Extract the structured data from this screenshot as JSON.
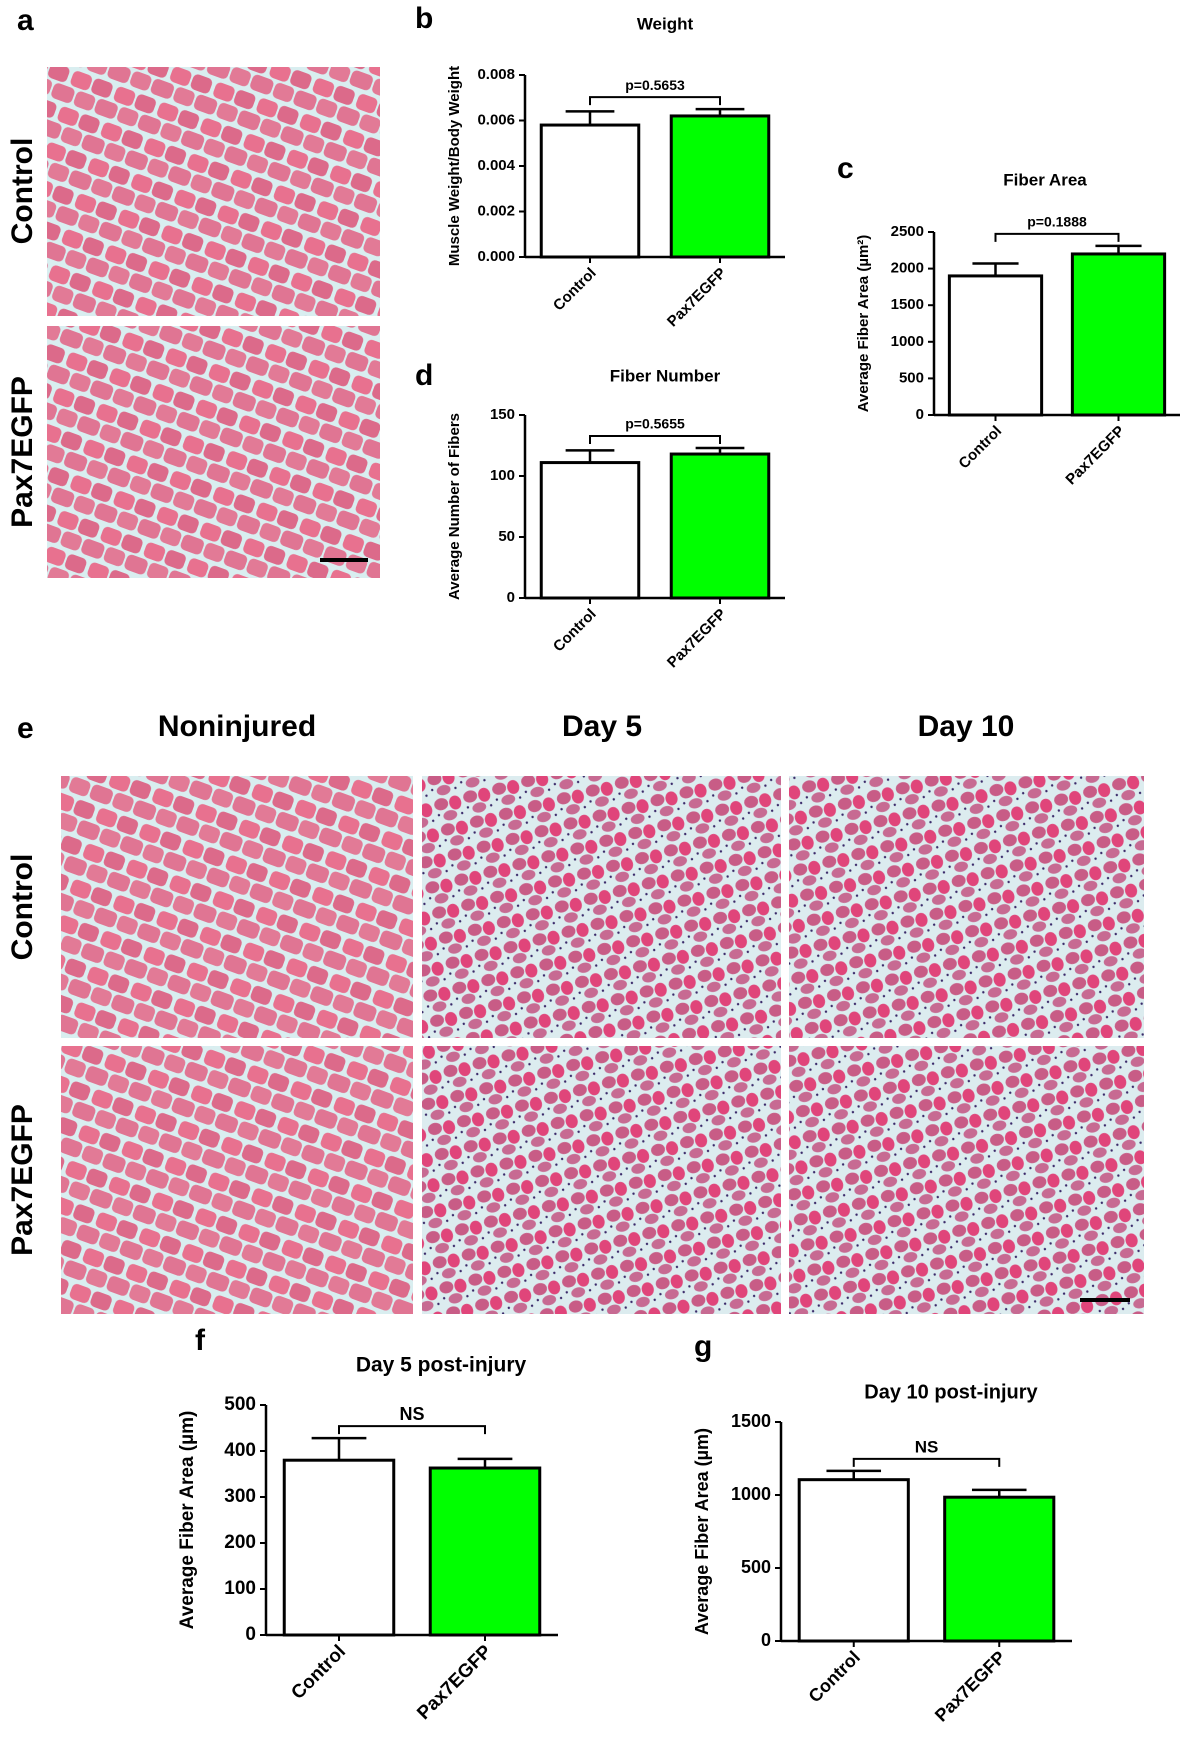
{
  "figure": {
    "panel_labels": [
      "a",
      "b",
      "c",
      "d",
      "e",
      "f",
      "g"
    ],
    "row_labels": [
      "Control",
      "Pax7EGFP"
    ],
    "column_labels": [
      "Noninjured",
      "Day 5",
      "Day 10"
    ]
  },
  "chart_data": [
    {
      "type": "bar",
      "title": "Weight",
      "y_label": "Muscle Weight/Body Weight",
      "categories": [
        "Control",
        "Pax7EGFP"
      ],
      "values": [
        0.0058,
        0.0062
      ],
      "errors": [
        0.0006,
        0.0003
      ],
      "colors": [
        "#ffffff",
        "#00ff00"
      ],
      "ylim": [
        0,
        0.008
      ],
      "yticks": [
        {
          "value": 0,
          "label": "0.000"
        },
        {
          "value": 0.002,
          "label": "0.002"
        },
        {
          "value": 0.004,
          "label": "0.004"
        },
        {
          "value": 0.006,
          "label": "0.006"
        },
        {
          "value": 0.008,
          "label": "0.008"
        }
      ],
      "annotation": "p=0.5653"
    },
    {
      "type": "bar",
      "title": "Fiber Area",
      "y_label": "Average Fiber Area (µm²)",
      "categories": [
        "Control",
        "Pax7EGFP"
      ],
      "values": [
        1900,
        2200
      ],
      "errors": [
        170,
        110
      ],
      "colors": [
        "#ffffff",
        "#00ff00"
      ],
      "ylim": [
        0,
        2500
      ],
      "yticks": [
        0,
        500,
        1000,
        1500,
        2000,
        2500
      ],
      "annotation": "p=0.1888"
    },
    {
      "type": "bar",
      "title": "Fiber Number",
      "y_label": "Average Number of Fibers",
      "categories": [
        "Control",
        "Pax7EGFP"
      ],
      "values": [
        111,
        118
      ],
      "errors": [
        10,
        5
      ],
      "colors": [
        "#ffffff",
        "#00ff00"
      ],
      "ylim": [
        0,
        150
      ],
      "yticks": [
        0,
        50,
        100,
        150
      ],
      "annotation": "p=0.5655"
    },
    {
      "type": "bar",
      "title": "Day 5 post-injury",
      "y_label": "Average Fiber Area (µm)",
      "categories": [
        "Control",
        "Pax7EGFP"
      ],
      "values": [
        380,
        363
      ],
      "errors": [
        48,
        20
      ],
      "colors": [
        "#ffffff",
        "#00ff00"
      ],
      "ylim": [
        0,
        500
      ],
      "yticks": [
        0,
        100,
        200,
        300,
        400,
        500
      ],
      "annotation": "NS"
    },
    {
      "type": "bar",
      "title": "Day 10 post-injury",
      "y_label": "Average Fiber Area (µm)",
      "categories": [
        "Control",
        "Pax7EGFP"
      ],
      "values": [
        1105,
        985
      ],
      "errors": [
        60,
        50
      ],
      "colors": [
        "#ffffff",
        "#00ff00"
      ],
      "ylim": [
        0,
        1500
      ],
      "yticks": [
        0,
        500,
        1000,
        1500
      ],
      "annotation": "NS"
    }
  ]
}
